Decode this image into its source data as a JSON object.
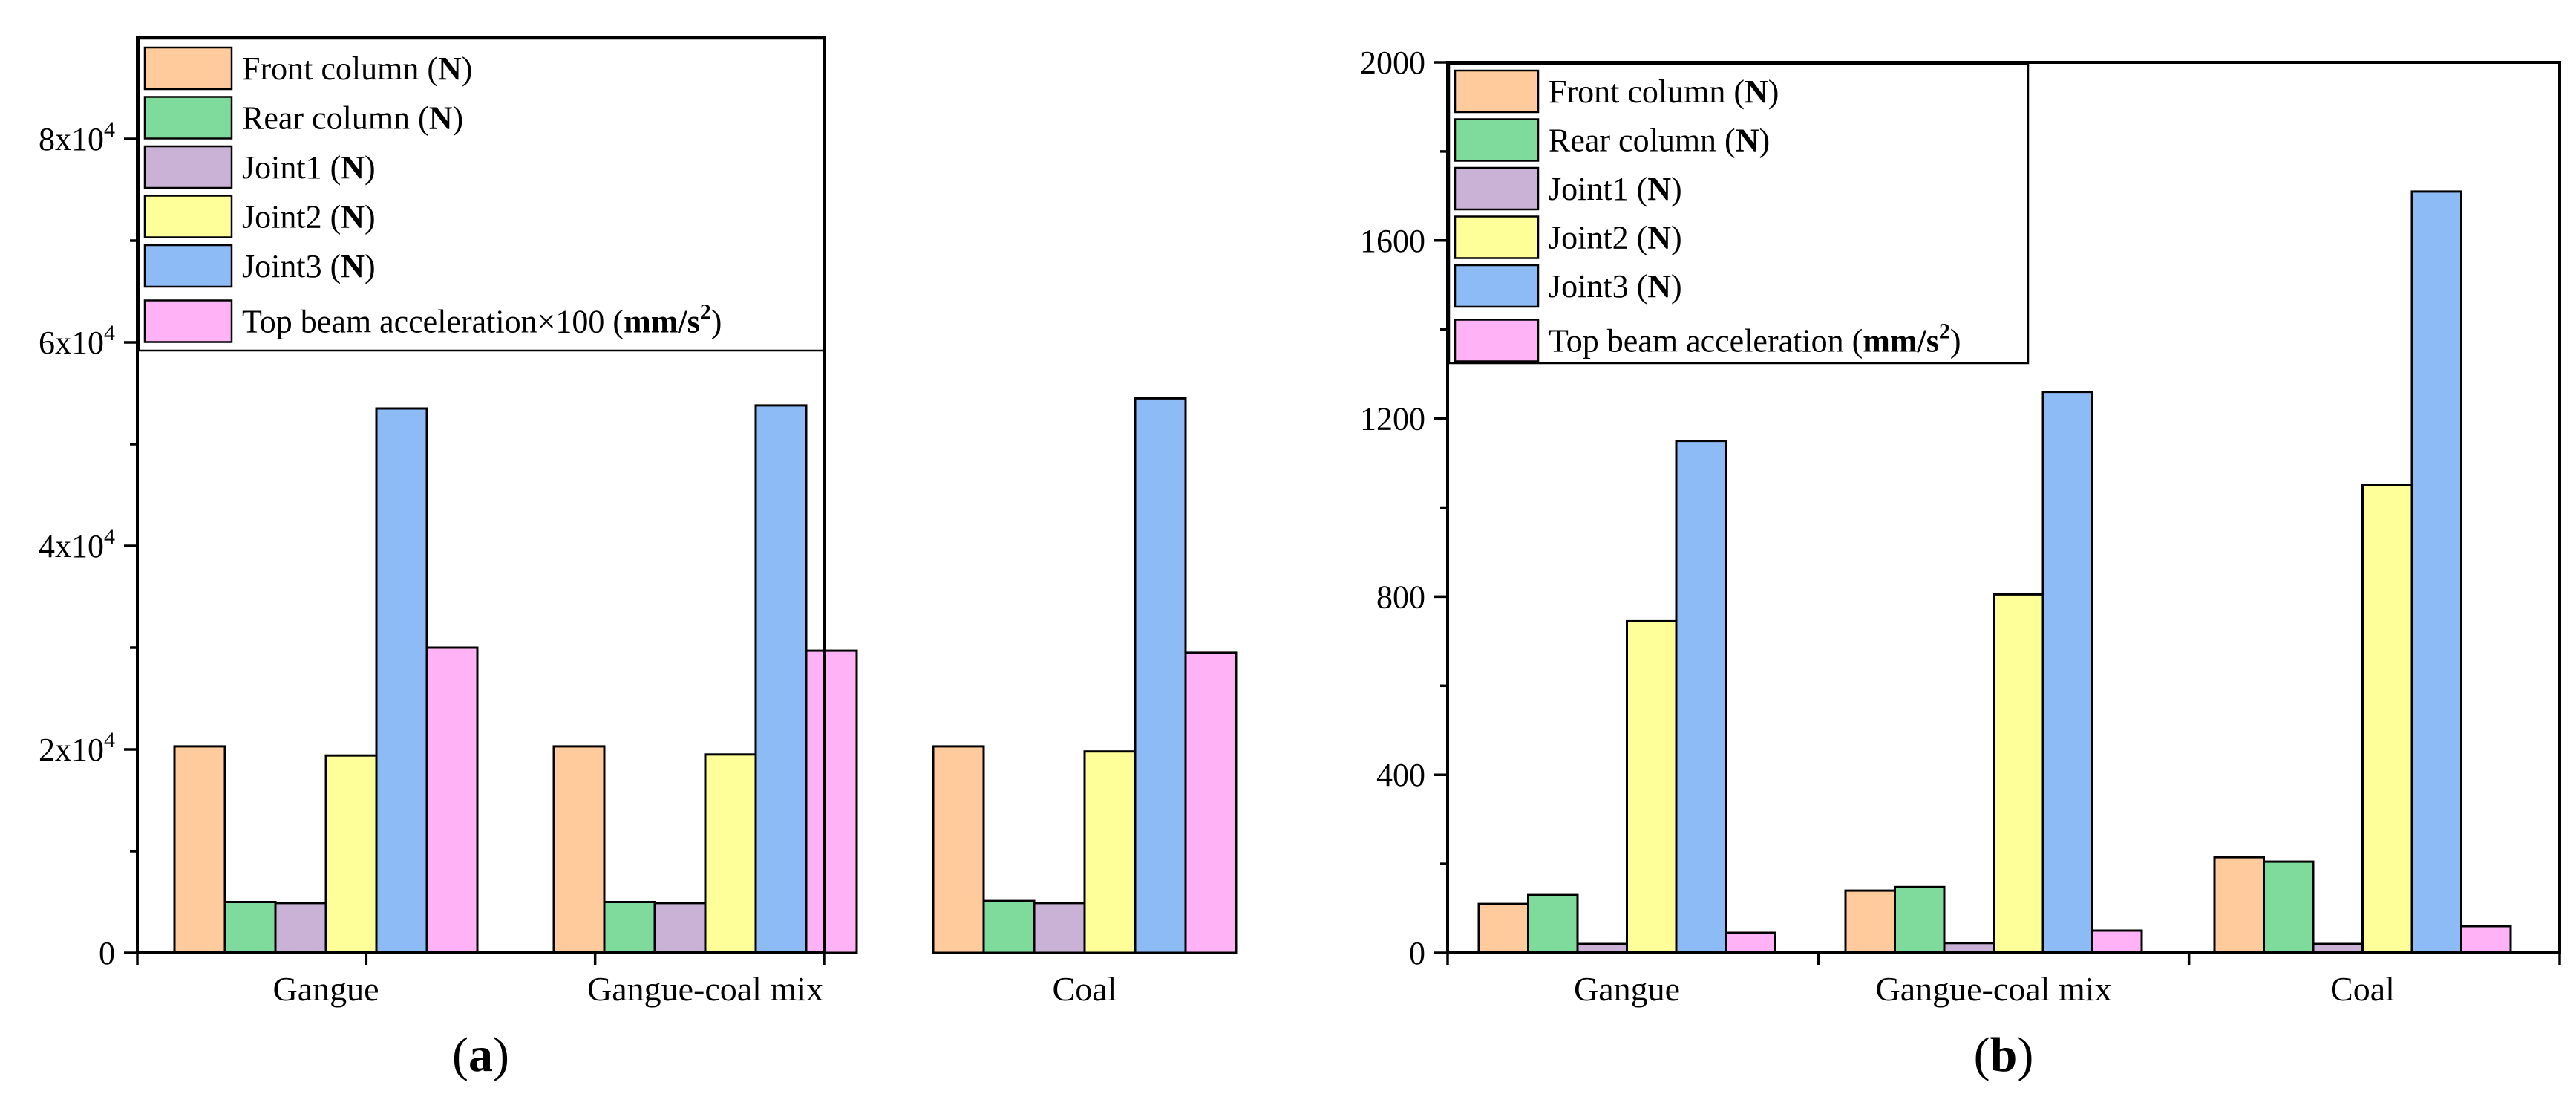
{
  "colors": {
    "front_column": "#FFCA9C",
    "rear_column": "#7FDB9C",
    "joint1": "#C9B2D6",
    "joint2": "#FFFF9A",
    "joint3": "#8DBBF6",
    "top_beam": "#FFB3F6"
  },
  "chart_data": [
    {
      "type": "bar",
      "panel_label": "a",
      "categories": [
        "Gangue",
        "Gangue-coal mix",
        "Coal"
      ],
      "ylim": [
        0,
        90000
      ],
      "yticks": [
        {
          "value": 0,
          "label": "0",
          "exp": ""
        },
        {
          "value": 20000,
          "label": "2x10",
          "exp": "4"
        },
        {
          "value": 40000,
          "label": "4x10",
          "exp": "4"
        },
        {
          "value": 60000,
          "label": "6x10",
          "exp": "4"
        },
        {
          "value": 80000,
          "label": "8x10",
          "exp": "4"
        }
      ],
      "minor_yticks": [
        10000,
        30000,
        50000,
        70000
      ],
      "grid": false,
      "legend_position": "top-left",
      "series": [
        {
          "key": "front_column",
          "name": "Front column (",
          "unit": "N",
          "values": [
            20300,
            20300,
            20300
          ]
        },
        {
          "key": "rear_column",
          "name": "Rear column (",
          "unit": "N",
          "values": [
            5000,
            5000,
            5100
          ]
        },
        {
          "key": "joint1",
          "name": "Joint1 (",
          "unit": "N",
          "values": [
            4900,
            4900,
            4900
          ]
        },
        {
          "key": "joint2",
          "name": "Joint2 (",
          "unit": "N",
          "values": [
            19400,
            19500,
            19800
          ]
        },
        {
          "key": "joint3",
          "name": "Joint3 (",
          "unit": "N",
          "values": [
            53500,
            53800,
            54500
          ]
        },
        {
          "key": "top_beam",
          "name": "Top beam acceleration×100 (",
          "unit": "mm/s",
          "unit_sup": "2",
          "values": [
            30000,
            29700,
            29500
          ]
        }
      ]
    },
    {
      "type": "bar",
      "panel_label": "b",
      "categories": [
        "Gangue",
        "Gangue-coal mix",
        "Coal"
      ],
      "ylim": [
        0,
        2000
      ],
      "yticks": [
        {
          "value": 0,
          "label": "0",
          "exp": ""
        },
        {
          "value": 400,
          "label": "400",
          "exp": ""
        },
        {
          "value": 800,
          "label": "800",
          "exp": ""
        },
        {
          "value": 1200,
          "label": "1200",
          "exp": ""
        },
        {
          "value": 1600,
          "label": "1600",
          "exp": ""
        },
        {
          "value": 2000,
          "label": "2000",
          "exp": ""
        }
      ],
      "minor_yticks": [
        200,
        600,
        1000,
        1400,
        1800
      ],
      "grid": false,
      "legend_position": "top-left",
      "series": [
        {
          "key": "front_column",
          "name": "Front column (",
          "unit": "N",
          "values": [
            110,
            140,
            215
          ]
        },
        {
          "key": "rear_column",
          "name": "Rear column (",
          "unit": "N",
          "values": [
            130,
            148,
            205
          ]
        },
        {
          "key": "joint1",
          "name": "Joint1 (",
          "unit": "N",
          "values": [
            20,
            22,
            20
          ]
        },
        {
          "key": "joint2",
          "name": "Joint2 (",
          "unit": "N",
          "values": [
            745,
            805,
            1050
          ]
        },
        {
          "key": "joint3",
          "name": "Joint3 (",
          "unit": "N",
          "values": [
            1150,
            1260,
            1710
          ]
        },
        {
          "key": "top_beam",
          "name": "Top beam acceleration (",
          "unit": "mm/s",
          "unit_sup": "2",
          "values": [
            45,
            50,
            60
          ]
        }
      ]
    }
  ]
}
